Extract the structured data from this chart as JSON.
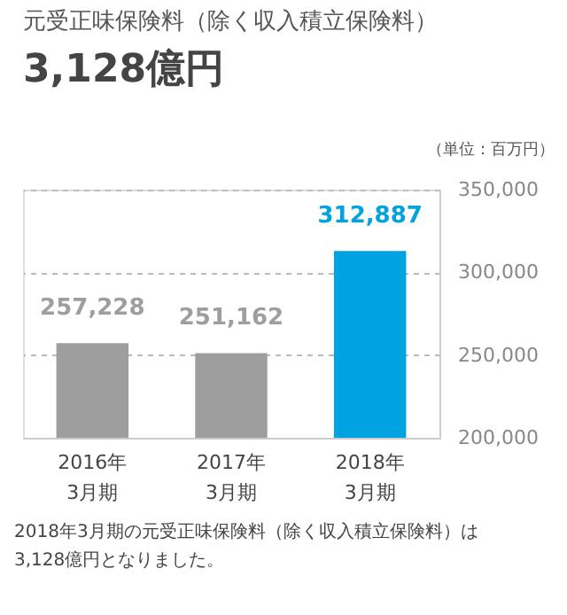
{
  "chart_data": {
    "type": "bar",
    "title": "元受正味保険料（除く収入積立保険料）",
    "subtitle": "3,128億円",
    "categories": [
      "2016年\n3月期",
      "2017年\n3月期",
      "2018年\n3月期"
    ],
    "values": [
      257228,
      251162,
      312887
    ],
    "colors": [
      "#9e9e9e",
      "#9e9e9e",
      "#00a3e0"
    ],
    "value_labels": [
      "257,228",
      "251,162",
      "312,887"
    ],
    "ylim": [
      200000,
      350000
    ],
    "yticks": [
      {
        "value": 200000,
        "label": "200,000"
      },
      {
        "value": 250000,
        "label": "250,000"
      },
      {
        "value": 300000,
        "label": "300,000"
      },
      {
        "value": 350000,
        "label": "350,000"
      }
    ],
    "grid": "y",
    "annotations": [
      "（単位：百万円）",
      "2018年3月期の元受正味保険料（除く収入積立保険料）は\n3,128億円となりました。"
    ]
  }
}
